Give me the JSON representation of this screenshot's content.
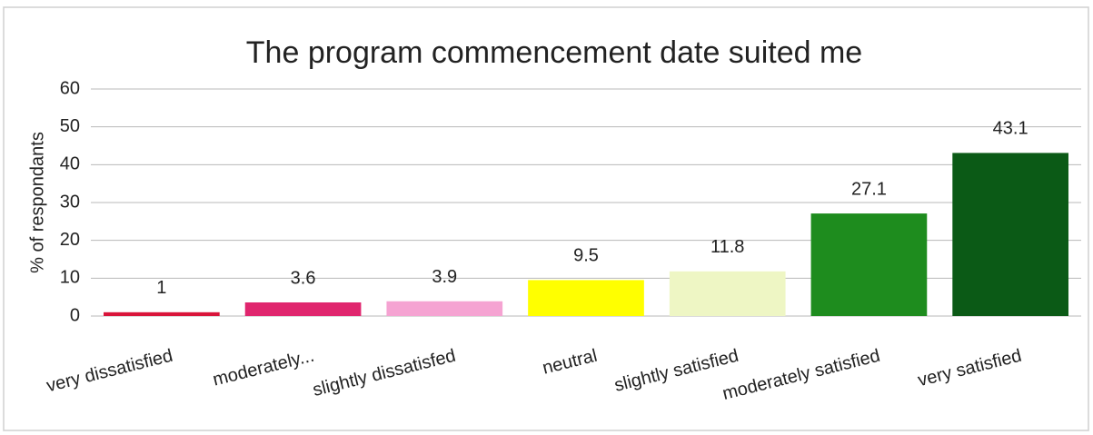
{
  "chart_data": {
    "type": "bar",
    "title": "The program commencement date suited me",
    "y_label": "% of respondants",
    "categories": [
      "very dissatisfied",
      "moderately...",
      "slightly dissatisfed",
      "neutral",
      "slightly satisfied",
      "moderately satisfied",
      "very satisfied"
    ],
    "values": [
      1,
      3.6,
      3.9,
      9.5,
      11.8,
      27.1,
      43.1
    ],
    "colors": [
      "#d9143a",
      "#e0266e",
      "#f5a3d2",
      "#ffff00",
      "#eef6c4",
      "#1e8c1e",
      "#0b5a16"
    ],
    "ylim": [
      0,
      60
    ],
    "yticks": [
      0,
      10,
      20,
      30,
      40,
      50,
      60
    ],
    "grid": true
  }
}
